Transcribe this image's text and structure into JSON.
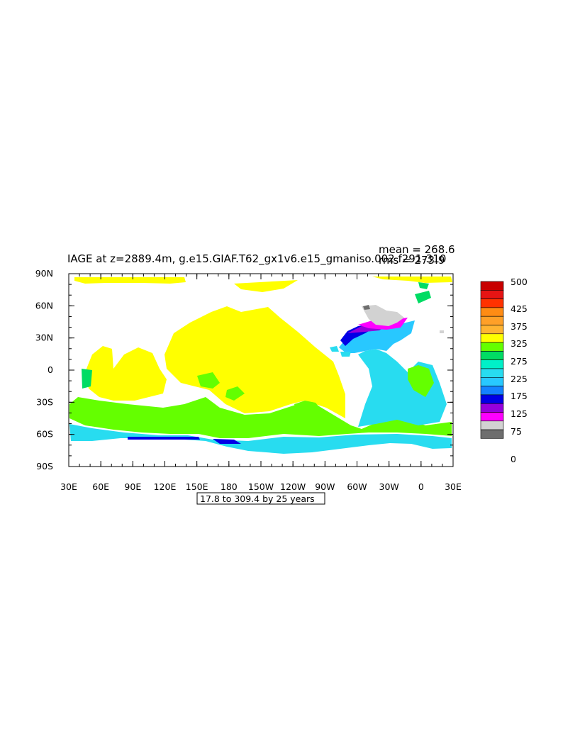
{
  "title": "IAGE at z=2889.4m, g.e15.GIAF.T62_gx1v6.e15_gmaniso.002 f291-310",
  "stats": {
    "mean": "mean = 268.6",
    "rms": "rms = 273.9"
  },
  "contour_info": "17.8 to 309.4 by 25 years",
  "axes": {
    "lat_labels": [
      "90N",
      "60N",
      "30N",
      "0",
      "30S",
      "60S",
      "90S"
    ],
    "lon_labels": [
      "30E",
      "60E",
      "90E",
      "120E",
      "150E",
      "180",
      "150W",
      "120W",
      "90W",
      "60W",
      "30W",
      "0",
      "30E"
    ]
  },
  "colorbar": {
    "colors": [
      "#c80000",
      "#e61414",
      "#ff3200",
      "#ff8c14",
      "#ffa028",
      "#ffb432",
      "#ffff00",
      "#64ff00",
      "#00dc64",
      "#00f0c8",
      "#28dcf0",
      "#28c8ff",
      "#1482ff",
      "#0000e6",
      "#9600dc",
      "#ff00ff",
      "#d2d2d2",
      "#6e6e6e"
    ],
    "labels": [
      "500",
      "425",
      "375",
      "325",
      "275",
      "225",
      "175",
      "125",
      "75",
      "0"
    ]
  },
  "map_regions": [
    {
      "name": "arctic-strip-pacific",
      "color": "#ffff00"
    },
    {
      "name": "arctic-strip-atlantic",
      "color": "#ffff00"
    },
    {
      "name": "indian-ocean",
      "color": "#ffff00"
    },
    {
      "name": "north-pacific",
      "color": "#ffff00"
    },
    {
      "name": "south-pacific",
      "color": "#ffff00"
    },
    {
      "name": "southern-ocean",
      "color": "#64ff00"
    },
    {
      "name": "south-atlantic",
      "color": "#28dcf0"
    },
    {
      "name": "north-atlantic",
      "color": "#28c8ff"
    },
    {
      "name": "labrador-sea",
      "color": "#0000e6"
    },
    {
      "name": "greenland",
      "color": "#d2d2d2"
    }
  ]
}
